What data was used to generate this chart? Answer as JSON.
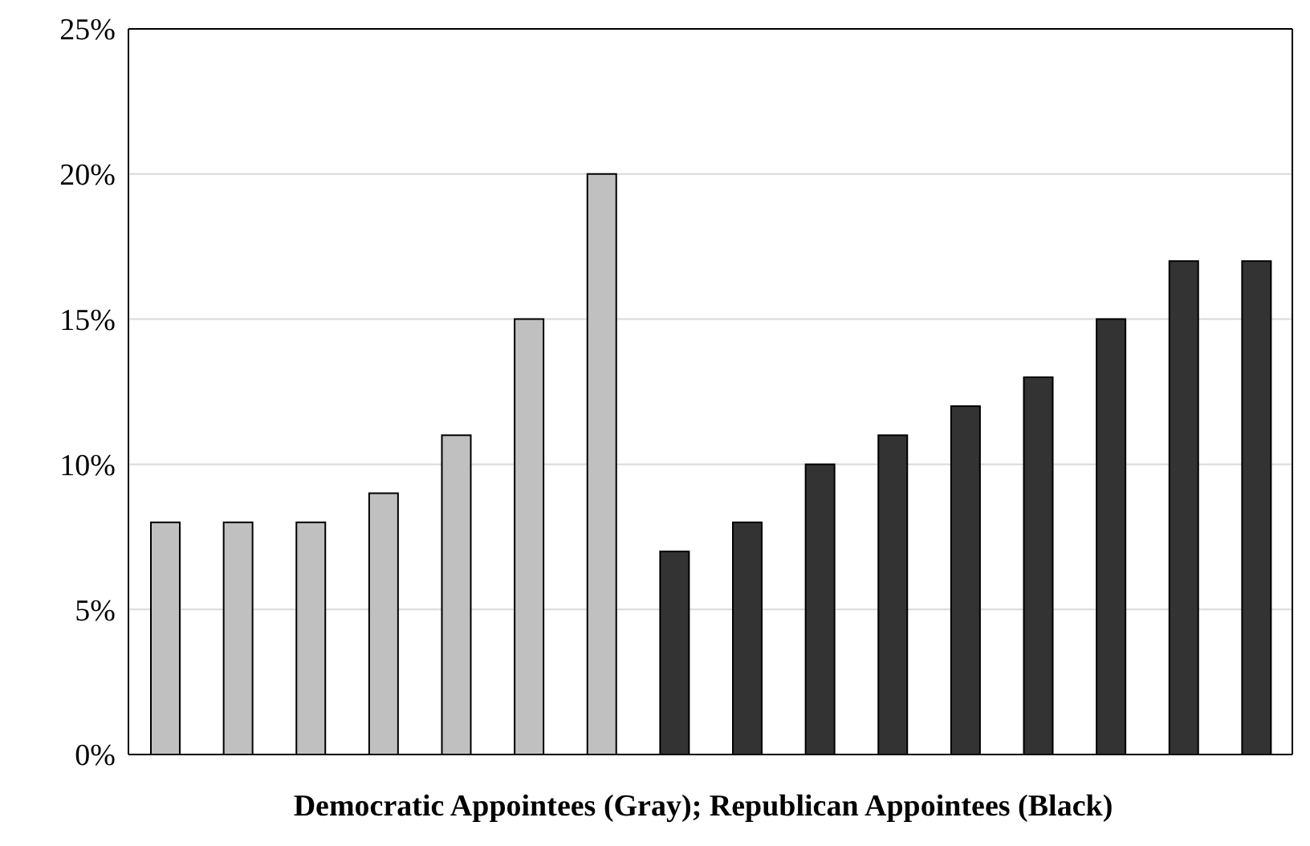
{
  "chart_data": {
    "type": "bar",
    "xlabel": "Democratic Appointees (Gray); Republican Appointees (Black)",
    "categories": [
      null,
      null,
      null,
      null,
      null,
      null,
      null,
      null,
      null,
      null,
      null,
      null,
      null,
      null,
      null,
      null
    ],
    "values": [
      8,
      8,
      8,
      9,
      11,
      15,
      20,
      7,
      8,
      10,
      11,
      12,
      13,
      15,
      17,
      17
    ],
    "colors": [
      "#c0c0c0",
      "#c0c0c0",
      "#c0c0c0",
      "#c0c0c0",
      "#c0c0c0",
      "#c0c0c0",
      "#c0c0c0",
      "#333333",
      "#333333",
      "#333333",
      "#333333",
      "#333333",
      "#333333",
      "#333333",
      "#333333",
      "#333333"
    ],
    "ylim": [
      0,
      25
    ],
    "yticks": [
      {
        "value": 0,
        "label": "0%"
      },
      {
        "value": 5,
        "label": "5%"
      },
      {
        "value": 10,
        "label": "10%"
      },
      {
        "value": 15,
        "label": "15%"
      },
      {
        "value": 20,
        "label": "20%"
      },
      {
        "value": 25,
        "label": "25%"
      }
    ],
    "grid": "y"
  }
}
